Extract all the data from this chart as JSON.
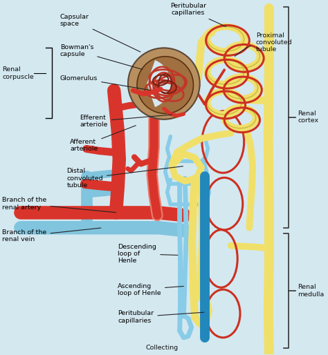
{
  "bg_color": "#d4e8f0",
  "labels": {
    "capsular_space": "Capsular\nspace",
    "bowmans_capsule": "Bowman's\ncapsule",
    "glomerulus": "Glomerulus",
    "renal_corpuscle": "Renal\ncorpuscle",
    "peritubular_cap_top": "Peritubular\ncapillaries",
    "proximal_conv": "Proximal\nconvoluted\ntubule",
    "efferent": "Efferent\narteriole",
    "afferent": "Afferent\narteriole",
    "distal_conv": "Distal\nconvoluted\ntubule",
    "branch_artery": "Branch of the\nrenal artery",
    "branch_vein": "Branch of the\nrenal vein",
    "descending": "Descending\nloop of\nHenle",
    "ascending": "Ascending\nloop of Henle",
    "peritubular_cap_bot": "Peritubular\ncapillaries",
    "collecting": "Collecting",
    "renal_cortex": "Renal\ncortex",
    "renal_medulla": "Renal\nmedulla"
  },
  "colors": {
    "artery": "#d9342b",
    "artery_light": "#e88070",
    "vein": "#80c4de",
    "vein_dark": "#5090b0",
    "tubule": "#f0e06a",
    "tubule_edge": "#c8b840",
    "bowman_outer": "#b89060",
    "bowman_mid": "#a07040",
    "bowman_inner": "#c06040",
    "glom_red": "#c03828",
    "glom_dark": "#7a2010",
    "peritubular_red": "#cc3020",
    "collecting_duct": "#2288bb",
    "desc_henle": "#88cce8",
    "bg": "#d4e8f0"
  },
  "font_size": 6.8
}
